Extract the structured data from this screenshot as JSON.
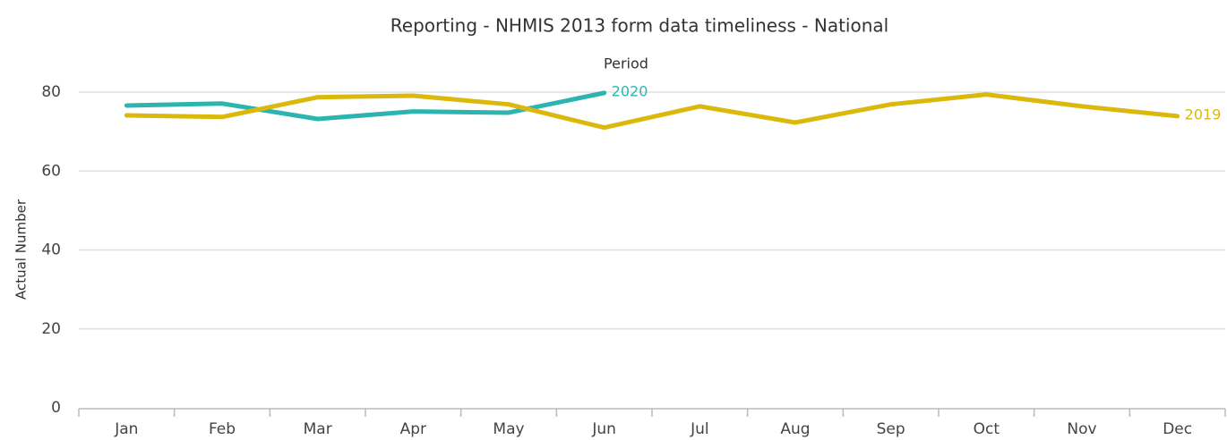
{
  "chart_data": {
    "type": "line",
    "title": "Reporting - NHMIS 2013 form data timeliness - National",
    "legend_title": "Period",
    "y_label": "Actual Number",
    "categories": [
      "Jan",
      "Feb",
      "Mar",
      "Apr",
      "May",
      "Jun",
      "Jul",
      "Aug",
      "Sep",
      "Oct",
      "Nov",
      "Dec"
    ],
    "series": [
      {
        "name": "2020",
        "color": "#2cb5b0",
        "values": [
          76.6,
          77.1,
          73.2,
          75.1,
          74.8,
          79.8,
          null,
          null,
          null,
          null,
          null,
          null
        ]
      },
      {
        "name": "2019",
        "color": "#dbb90c",
        "values": [
          74.1,
          73.7,
          78.7,
          79.1,
          76.9,
          71.0,
          76.4,
          72.3,
          76.9,
          79.4,
          76.4,
          73.9
        ]
      }
    ],
    "ylim": [
      0,
      80
    ],
    "yticks": [
      0,
      20,
      40,
      60,
      80
    ],
    "grid": true
  }
}
